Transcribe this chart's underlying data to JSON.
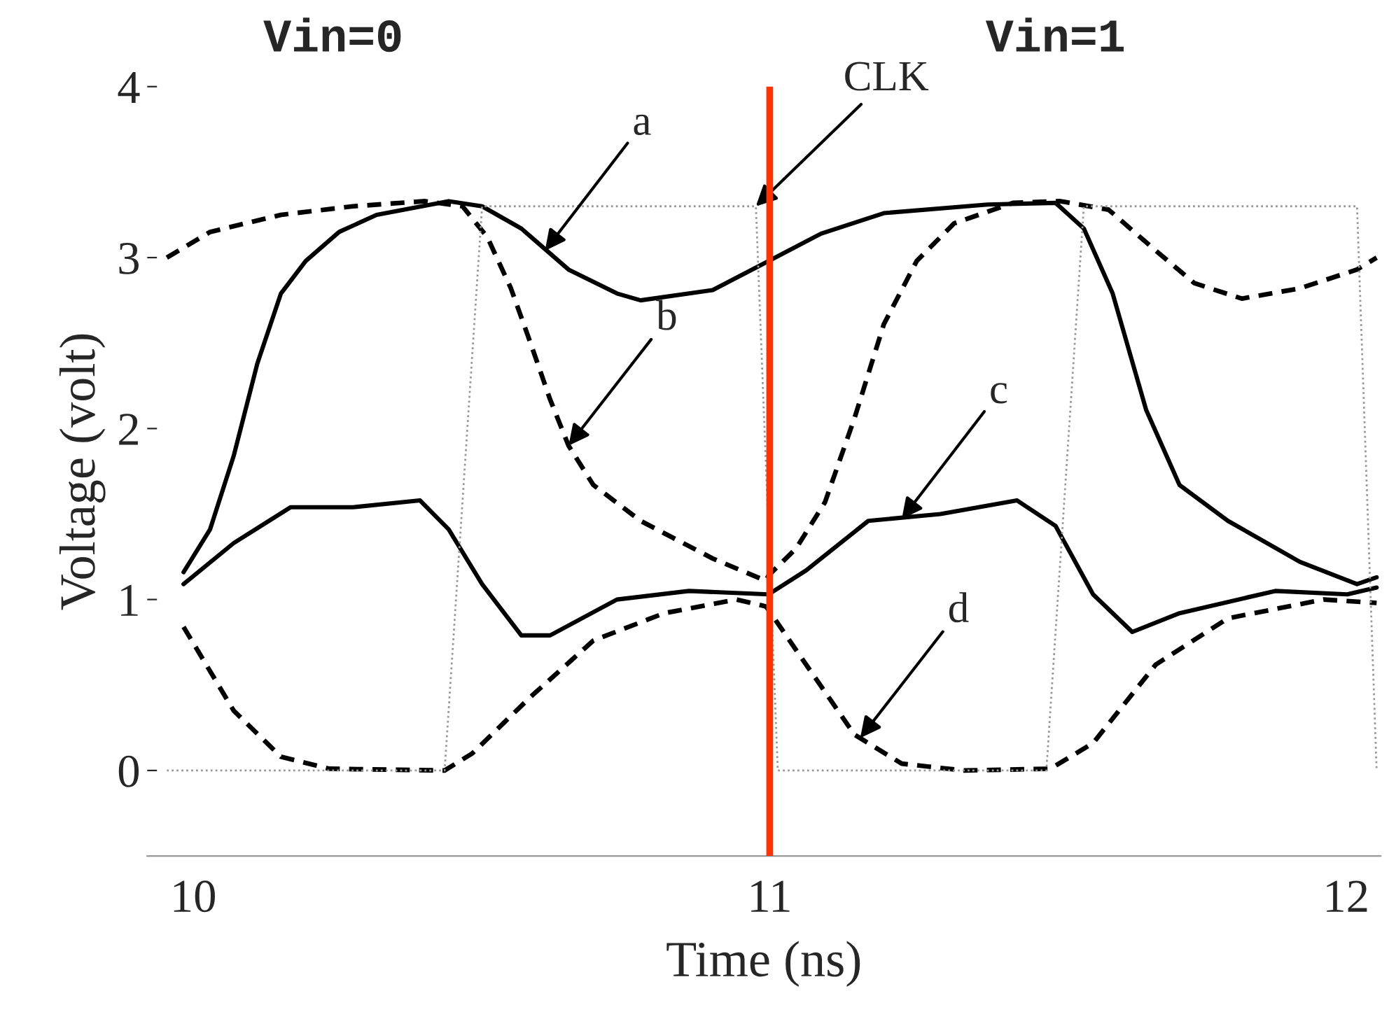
{
  "chart_data": {
    "type": "line",
    "xlabel": "Time (ns)",
    "ylabel": "Voltage (volt)",
    "xlim": [
      9.92,
      12.06
    ],
    "ylim": [
      -0.5,
      4
    ],
    "xticks": [
      10,
      11,
      12
    ],
    "yticks": [
      0,
      1,
      2,
      3,
      4
    ],
    "grid": false,
    "legend": false,
    "series": [
      {
        "color": "#000000",
        "line_style": "solid",
        "x": [
          9.983,
          10.029,
          10.07,
          10.111,
          10.152,
          10.195,
          10.253,
          10.318,
          10.443,
          10.501,
          10.569,
          10.651,
          10.735,
          10.776,
          10.901,
          10.998,
          11.089,
          11.198,
          11.378,
          11.496,
          11.545,
          11.595,
          11.653,
          11.711,
          11.795,
          11.92,
          12.019,
          12.053
        ],
        "values": [
          1.16,
          1.41,
          1.84,
          2.38,
          2.79,
          2.98,
          3.15,
          3.25,
          3.33,
          3.3,
          3.17,
          2.93,
          2.79,
          2.75,
          2.81,
          2.98,
          3.14,
          3.26,
          3.31,
          3.32,
          3.17,
          2.79,
          2.11,
          1.67,
          1.46,
          1.22,
          1.09,
          1.13
        ]
      },
      {
        "color": "#000000",
        "line_style": "dashed",
        "x": [
          9.954,
          10.029,
          10.152,
          10.277,
          10.402,
          10.467,
          10.51,
          10.551,
          10.585,
          10.619,
          10.651,
          10.694,
          10.776,
          10.901,
          10.993,
          10.998,
          11.046,
          11.096,
          11.147,
          11.198,
          11.255,
          11.32,
          11.422,
          11.504,
          11.588,
          11.67,
          11.737,
          11.819,
          11.92,
          12.019,
          12.053
        ],
        "values": [
          3.0,
          3.15,
          3.25,
          3.3,
          3.33,
          3.3,
          3.12,
          2.82,
          2.5,
          2.17,
          1.9,
          1.67,
          1.46,
          1.24,
          1.11,
          1.14,
          1.3,
          1.57,
          2.06,
          2.61,
          2.98,
          3.2,
          3.32,
          3.33,
          3.28,
          3.04,
          2.85,
          2.76,
          2.82,
          2.93,
          3.0
        ]
      },
      {
        "color": "#000000",
        "line_style": "solid",
        "x": [
          9.983,
          10.07,
          10.169,
          10.277,
          10.393,
          10.443,
          10.501,
          10.569,
          10.619,
          10.735,
          10.86,
          10.998,
          11.063,
          11.171,
          11.296,
          11.429,
          11.496,
          11.561,
          11.629,
          11.711,
          11.877,
          12.002,
          12.053
        ],
        "values": [
          1.09,
          1.33,
          1.54,
          1.54,
          1.58,
          1.41,
          1.09,
          0.79,
          0.79,
          1.0,
          1.05,
          1.03,
          1.17,
          1.46,
          1.5,
          1.58,
          1.43,
          1.03,
          0.81,
          0.92,
          1.05,
          1.03,
          1.07
        ]
      },
      {
        "color": "#000000",
        "line_style": "dashed",
        "x": [
          9.983,
          10.07,
          10.152,
          10.236,
          10.436,
          10.484,
          10.585,
          10.694,
          10.817,
          10.942,
          10.993,
          10.998,
          11.063,
          11.147,
          11.229,
          11.337,
          11.487,
          11.561,
          11.67,
          11.795,
          11.961,
          12.053
        ],
        "values": [
          0.84,
          0.35,
          0.08,
          0.01,
          0.0,
          0.1,
          0.43,
          0.76,
          0.92,
          1.0,
          0.96,
          0.94,
          0.62,
          0.21,
          0.04,
          0.0,
          0.01,
          0.16,
          0.62,
          0.89,
          1.0,
          0.98
        ]
      },
      {
        "color": "#999999",
        "line_style": "dotted",
        "x": [
          9.954,
          10.436,
          10.501,
          10.976,
          11.014,
          11.48,
          11.545,
          12.019,
          12.053
        ],
        "values": [
          0.0,
          0.0,
          3.3,
          3.3,
          0.0,
          0.0,
          3.3,
          3.3,
          0.0
        ]
      }
    ],
    "ref_lines": [
      {
        "axis": "x",
        "value": 11,
        "color": "#ff3300",
        "line_style": "solid"
      }
    ],
    "annotations": [
      "Vin=0",
      "Vin=1",
      {
        "text": "a",
        "x": 10.61,
        "y": 3.04
      },
      {
        "text": "b",
        "x": 10.651,
        "y": 1.9
      },
      {
        "text": "c",
        "x": 11.229,
        "y": 1.47
      },
      {
        "text": "d",
        "x": 11.157,
        "y": 0.19
      },
      {
        "text": "CLK",
        "x": 10.976,
        "y": 3.3
      }
    ]
  }
}
